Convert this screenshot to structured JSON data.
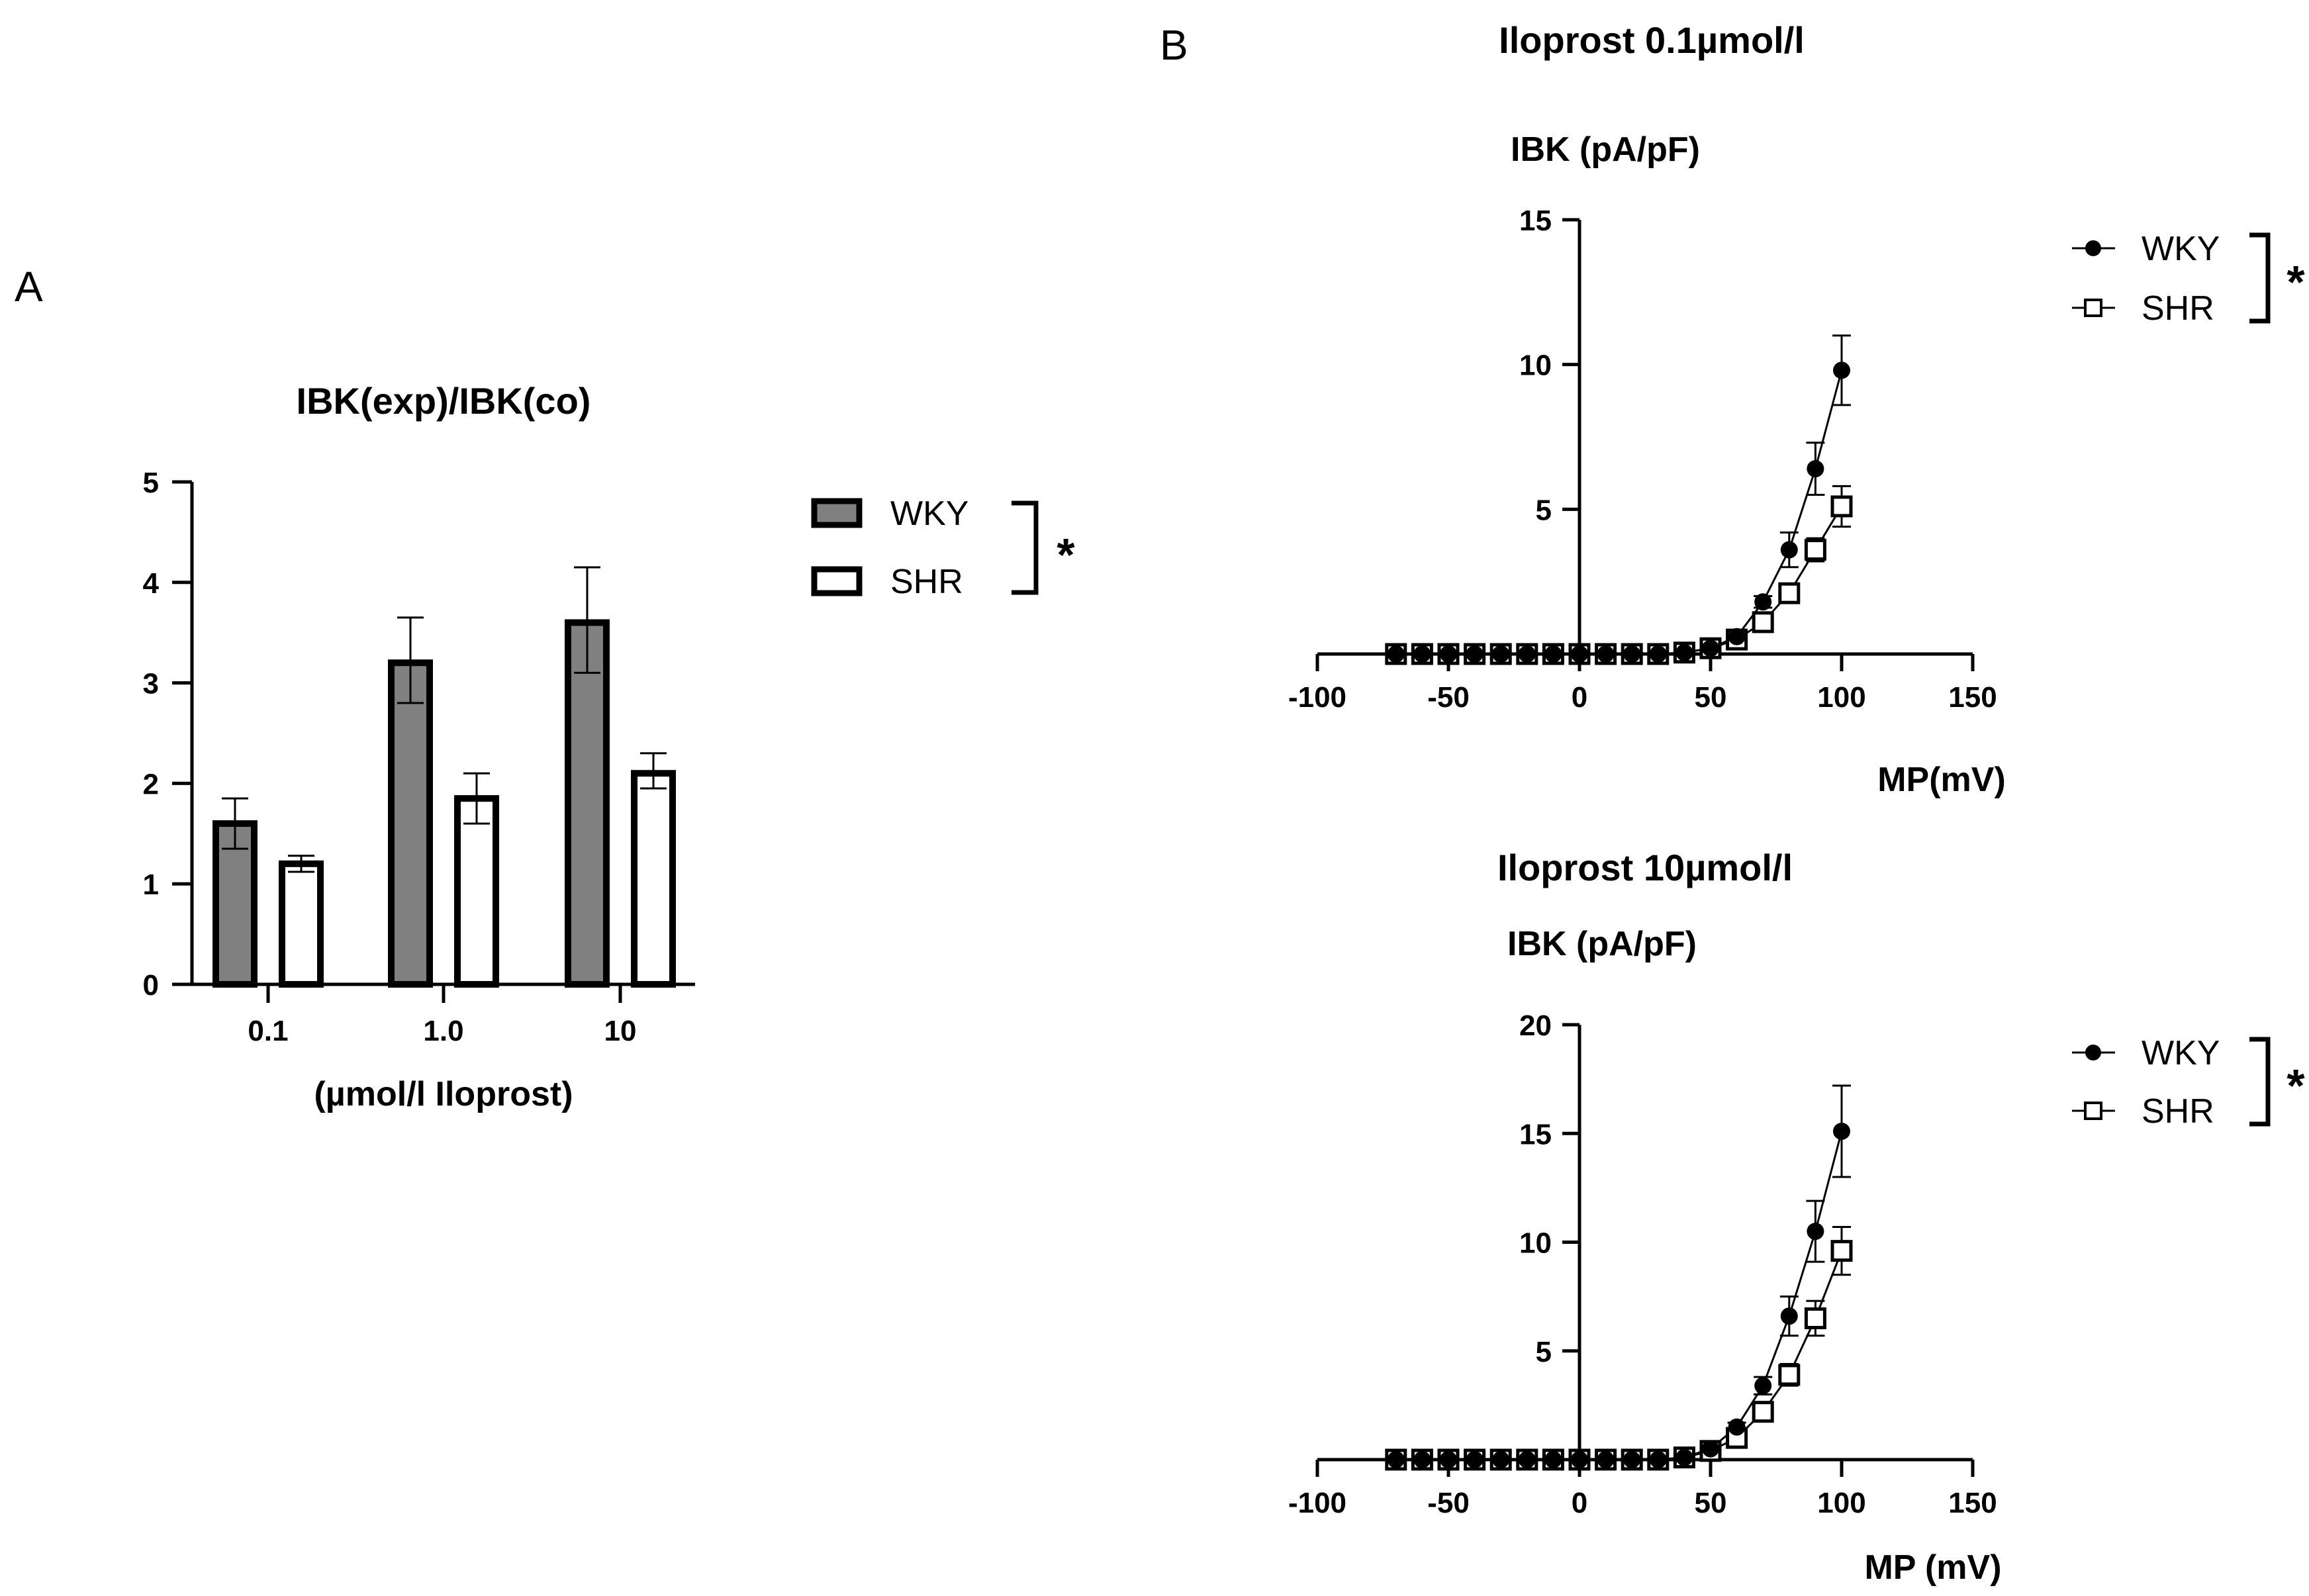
{
  "panels": {
    "a": {
      "letter": "A"
    },
    "b": {
      "letter": "B"
    }
  },
  "colors": {
    "wky_bar": "#808080",
    "shr_bar": "#ffffff",
    "ink": "#000000"
  },
  "chart_data": [
    {
      "id": "bar",
      "type": "bar",
      "title": "IBK(exp)/IBK(co)",
      "xlabel": "(µmol/l Iloprost)",
      "ylabel": "",
      "ylim": [
        0,
        5
      ],
      "yticks": [
        0,
        1,
        2,
        3,
        4,
        5
      ],
      "categories": [
        "0.1",
        "1.0",
        "10"
      ],
      "series": [
        {
          "name": "WKY",
          "values": [
            1.6,
            3.2,
            3.6
          ],
          "err_hi": [
            0.25,
            0.45,
            0.55
          ],
          "err_lo": [
            0.25,
            0.4,
            0.5
          ]
        },
        {
          "name": "SHR",
          "values": [
            1.2,
            1.85,
            2.1
          ],
          "err_hi": [
            0.08,
            0.25,
            0.2
          ],
          "err_lo": [
            0.08,
            0.25,
            0.15
          ]
        }
      ],
      "legend": {
        "position": "right",
        "entries": [
          "WKY",
          "SHR"
        ],
        "significance": "*"
      }
    },
    {
      "id": "iv1",
      "type": "line",
      "title": "Iloprost 0.1µmol/l",
      "xlabel": "MP(mV)",
      "ylabel": "IBK (pA/pF)",
      "xlim": [
        -100,
        150
      ],
      "xticks": [
        -100,
        -50,
        0,
        50,
        100,
        150
      ],
      "ylim": [
        0,
        15
      ],
      "yticks": [
        5,
        10,
        15
      ],
      "x": [
        -70,
        -60,
        -50,
        -40,
        -30,
        -20,
        -10,
        0,
        10,
        20,
        30,
        40,
        50,
        60,
        70,
        80,
        90,
        100
      ],
      "series": [
        {
          "name": "WKY",
          "marker": "filled-circle",
          "values": [
            0,
            0,
            0,
            0,
            0,
            0,
            0,
            0,
            0,
            0,
            0,
            0.05,
            0.2,
            0.6,
            1.8,
            3.6,
            6.4,
            9.8
          ],
          "err": [
            0,
            0,
            0,
            0,
            0,
            0,
            0,
            0,
            0,
            0,
            0,
            0,
            0,
            0,
            0.2,
            0.6,
            0.9,
            1.2
          ]
        },
        {
          "name": "SHR",
          "marker": "open-square",
          "values": [
            0,
            0,
            0,
            0,
            0,
            0,
            0,
            0,
            0,
            0,
            0,
            0.05,
            0.2,
            0.5,
            1.1,
            2.1,
            3.6,
            5.1
          ],
          "err": [
            0,
            0,
            0,
            0,
            0,
            0,
            0,
            0,
            0,
            0,
            0,
            0,
            0,
            0,
            0.1,
            0.2,
            0.4,
            0.7
          ]
        }
      ],
      "legend": {
        "position": "top-right",
        "entries": [
          "WKY",
          "SHR"
        ],
        "significance": "*"
      }
    },
    {
      "id": "iv2",
      "type": "line",
      "title": "Iloprost 10µmol/l",
      "xlabel": "MP (mV)",
      "ylabel": "IBK (pA/pF)",
      "xlim": [
        -100,
        150
      ],
      "xticks": [
        -100,
        -50,
        0,
        50,
        100,
        150
      ],
      "ylim": [
        0,
        20
      ],
      "yticks": [
        5,
        10,
        15,
        20
      ],
      "x": [
        -70,
        -60,
        -50,
        -40,
        -30,
        -20,
        -10,
        0,
        10,
        20,
        30,
        40,
        50,
        60,
        70,
        80,
        90,
        100
      ],
      "series": [
        {
          "name": "WKY",
          "marker": "filled-circle",
          "values": [
            0,
            0,
            0,
            0,
            0,
            0,
            0,
            0,
            0,
            0,
            0,
            0.1,
            0.5,
            1.5,
            3.4,
            6.6,
            10.5,
            15.1
          ],
          "err": [
            0,
            0,
            0,
            0,
            0,
            0,
            0,
            0,
            0,
            0,
            0,
            0,
            0,
            0.2,
            0.4,
            0.9,
            1.4,
            2.1
          ]
        },
        {
          "name": "SHR",
          "marker": "open-square",
          "values": [
            0,
            0,
            0,
            0,
            0,
            0,
            0,
            0,
            0,
            0,
            0,
            0.1,
            0.4,
            1.0,
            2.2,
            3.9,
            6.5,
            9.6
          ],
          "err": [
            0,
            0,
            0,
            0,
            0,
            0,
            0,
            0,
            0,
            0,
            0,
            0,
            0,
            0.1,
            0.3,
            0.5,
            0.8,
            1.1
          ]
        }
      ],
      "legend": {
        "position": "top-right",
        "entries": [
          "WKY",
          "SHR"
        ],
        "significance": "*"
      }
    }
  ]
}
